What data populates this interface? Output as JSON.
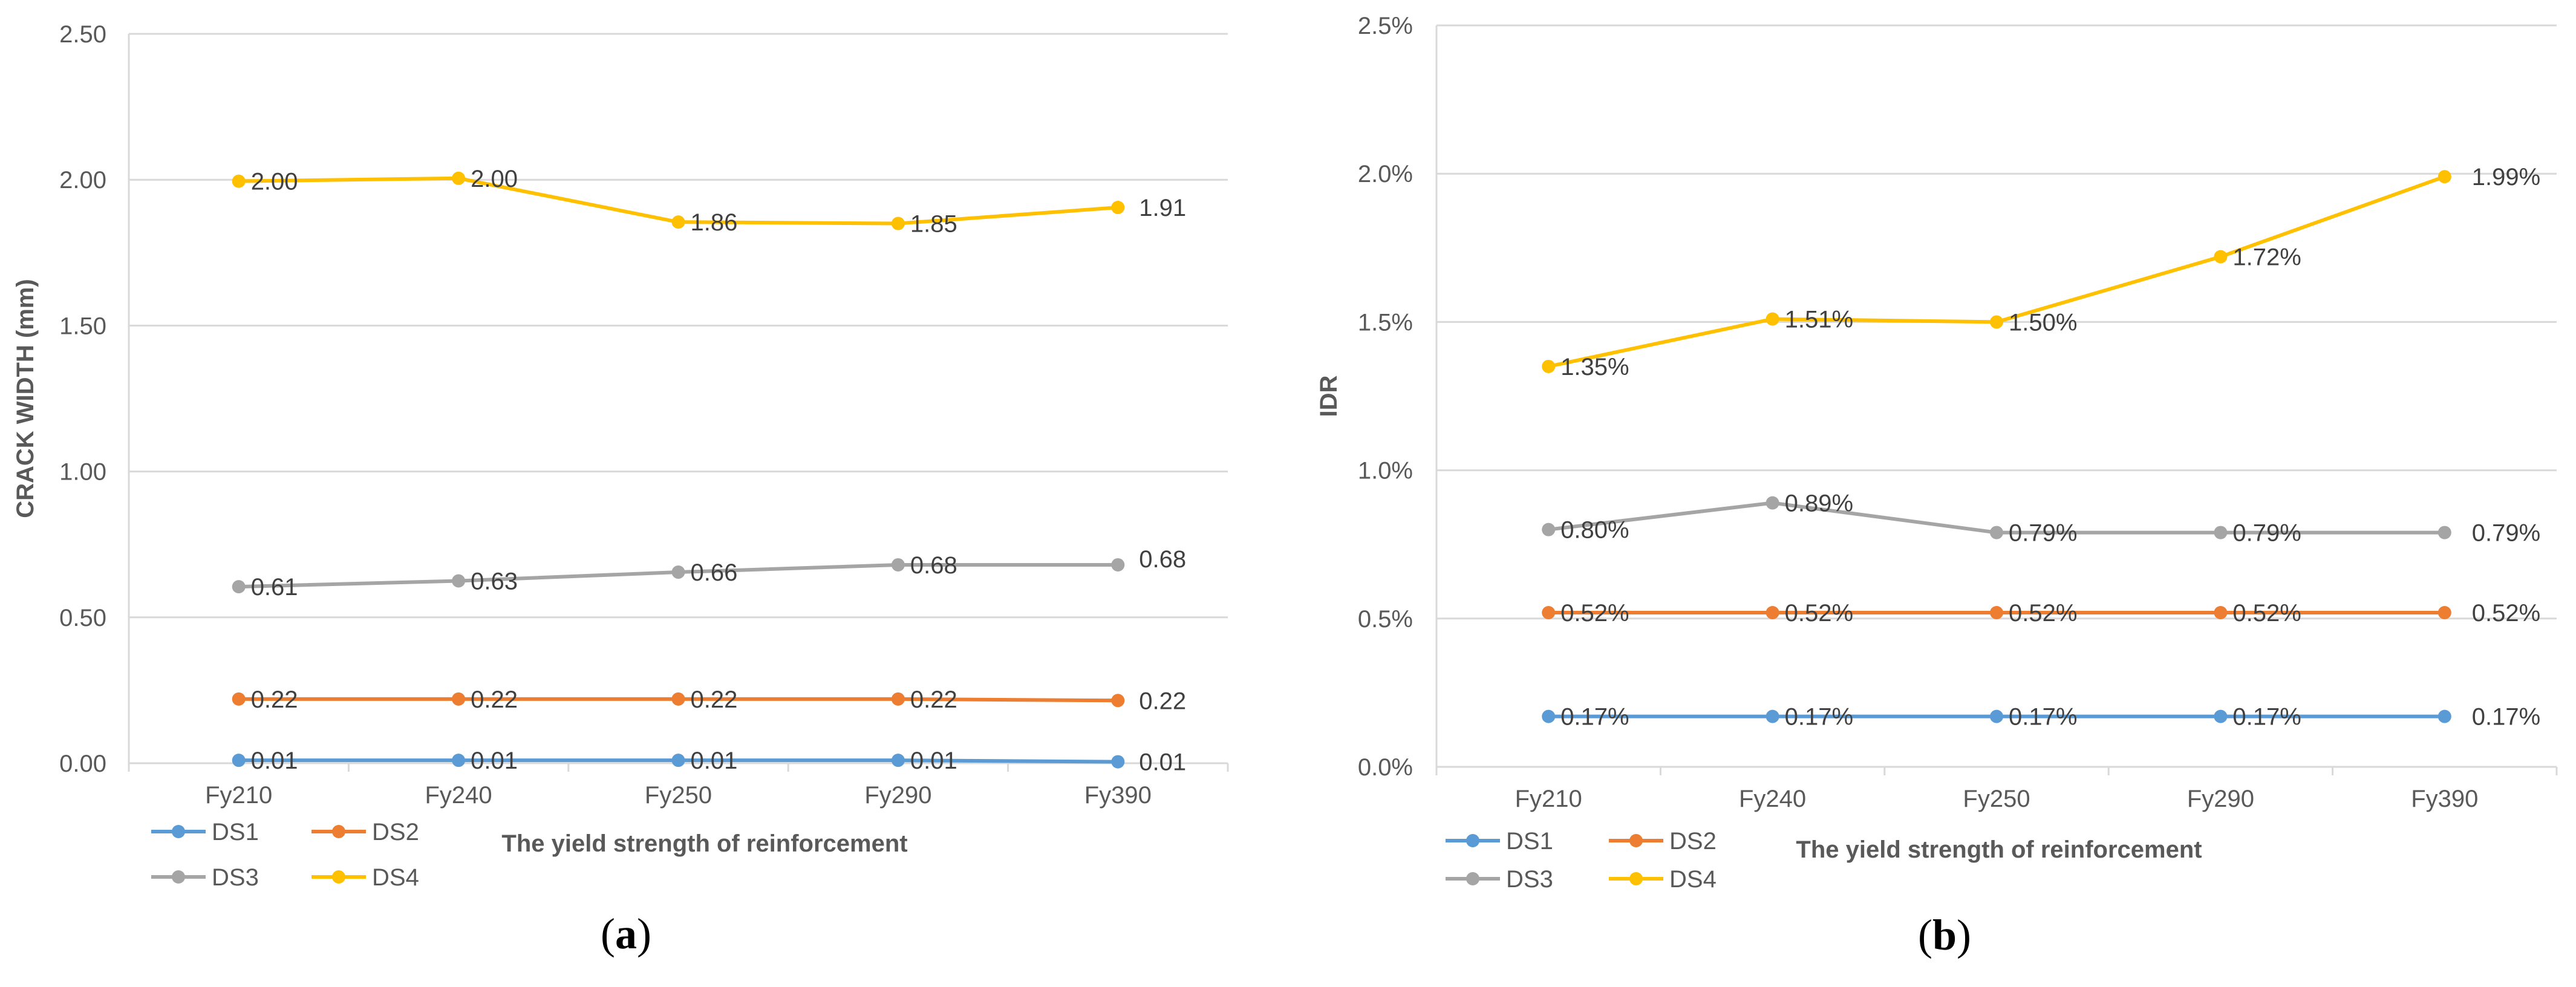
{
  "chart_data": [
    {
      "type": "line",
      "panel": "a",
      "caption": "a",
      "xlabel": "The yield strength of reinforcement",
      "ylabel": "CRACK WIDTH (mm)",
      "ylim": [
        0,
        2.5
      ],
      "yticks": [
        "0.00",
        "0.50",
        "1.00",
        "1.50",
        "2.00",
        "2.50"
      ],
      "grid": true,
      "legend_position": "bottom-left",
      "categories": [
        "Fy210",
        "Fy240",
        "Fy250",
        "Fy290",
        "Fy390"
      ],
      "series": [
        {
          "name": "DS1",
          "color": "#5B9BD5",
          "values": [
            0.01,
            0.01,
            0.01,
            0.01,
            0.005
          ],
          "labels": [
            "0.01",
            "0.01",
            "0.01",
            "0.01",
            "0.01"
          ]
        },
        {
          "name": "DS2",
          "color": "#ED7D31",
          "values": [
            0.22,
            0.22,
            0.22,
            0.22,
            0.215
          ],
          "labels": [
            "0.22",
            "0.22",
            "0.22",
            "0.22",
            "0.22"
          ]
        },
        {
          "name": "DS3",
          "color": "#A5A5A5",
          "values": [
            0.605,
            0.625,
            0.655,
            0.68,
            0.68
          ],
          "labels": [
            "0.61",
            "0.63",
            "0.66",
            "0.68",
            "0.68"
          ]
        },
        {
          "name": "DS4",
          "color": "#FFC000",
          "values": [
            1.995,
            2.005,
            1.855,
            1.85,
            1.905
          ],
          "labels": [
            "2.00",
            "2.00",
            "1.86",
            "1.85",
            "1.91"
          ]
        }
      ]
    },
    {
      "type": "line",
      "panel": "b",
      "caption": "b",
      "xlabel": "The yield strength of reinforcement",
      "ylabel": "IDR",
      "ylim": [
        0,
        2.5
      ],
      "yticks": [
        "0.0%",
        "0.5%",
        "1.0%",
        "1.5%",
        "2.0%",
        "2.5%"
      ],
      "grid": true,
      "legend_position": "bottom-left",
      "categories": [
        "Fy210",
        "Fy240",
        "Fy250",
        "Fy290",
        "Fy390"
      ],
      "series": [
        {
          "name": "DS1",
          "color": "#5B9BD5",
          "values": [
            0.17,
            0.17,
            0.17,
            0.17,
            0.17
          ],
          "labels": [
            "0.17%",
            "0.17%",
            "0.17%",
            "0.17%",
            "0.17%"
          ]
        },
        {
          "name": "DS2",
          "color": "#ED7D31",
          "values": [
            0.52,
            0.52,
            0.52,
            0.52,
            0.52
          ],
          "labels": [
            "0.52%",
            "0.52%",
            "0.52%",
            "0.52%",
            "0.52%"
          ]
        },
        {
          "name": "DS3",
          "color": "#A5A5A5",
          "values": [
            0.8,
            0.89,
            0.79,
            0.79,
            0.79
          ],
          "labels": [
            "0.80%",
            "0.89%",
            "0.79%",
            "0.79%",
            "0.79%"
          ]
        },
        {
          "name": "DS4",
          "color": "#FFC000",
          "values": [
            1.35,
            1.51,
            1.5,
            1.72,
            1.99
          ],
          "labels": [
            "1.35%",
            "1.51%",
            "1.50%",
            "1.72%",
            "1.99%"
          ]
        }
      ]
    }
  ]
}
